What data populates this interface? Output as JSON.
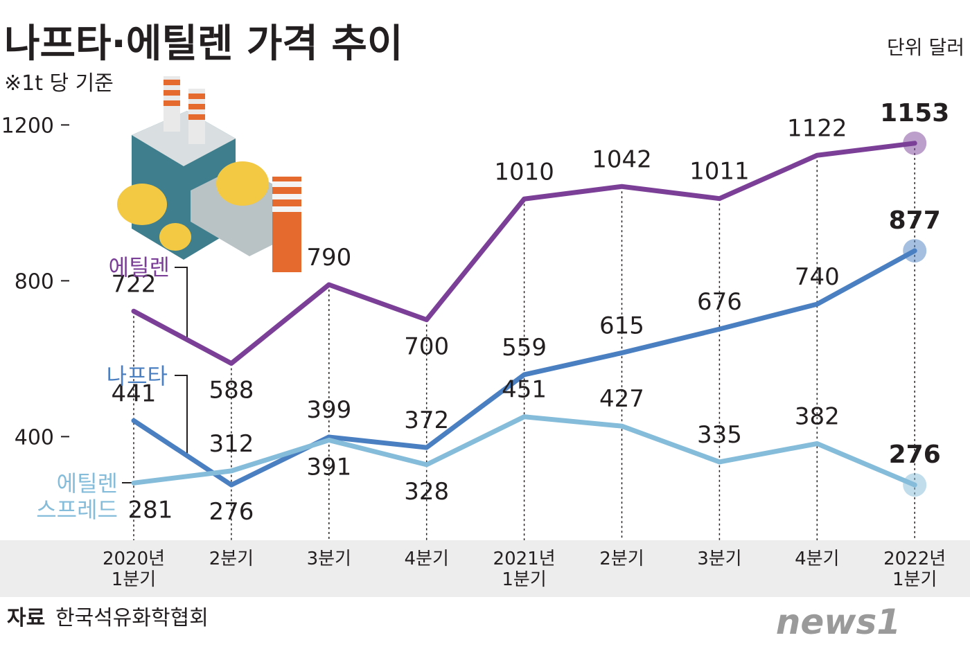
{
  "chart_data": {
    "type": "line",
    "title": "나프타·에틸렌 가격 추이",
    "subtitle": "※1t 당 기준",
    "unit": "단위 달러",
    "source_label": "자료",
    "source": "한국석유화학협회",
    "logo": "news1",
    "categories": [
      "2020년 1분기",
      "2분기",
      "3분기",
      "4분기",
      "2021년 1분기",
      "2분기",
      "3분기",
      "4분기",
      "2022년 1분기"
    ],
    "series": [
      {
        "name": "에틸렌",
        "color": "#7b3f98",
        "values": [
          722,
          588,
          790,
          700,
          1010,
          1042,
          1011,
          1122,
          1153
        ]
      },
      {
        "name": "나프타",
        "color": "#4a7fc1",
        "values": [
          441,
          276,
          399,
          372,
          559,
          615,
          676,
          740,
          877
        ]
      },
      {
        "name": "에틸렌 스프레드",
        "color": "#84bcd9",
        "values": [
          281,
          312,
          391,
          328,
          451,
          427,
          335,
          382,
          276
        ]
      }
    ],
    "ylim": [
      134,
      1270
    ],
    "yticks": [
      400,
      800,
      1200
    ],
    "grid": false
  }
}
